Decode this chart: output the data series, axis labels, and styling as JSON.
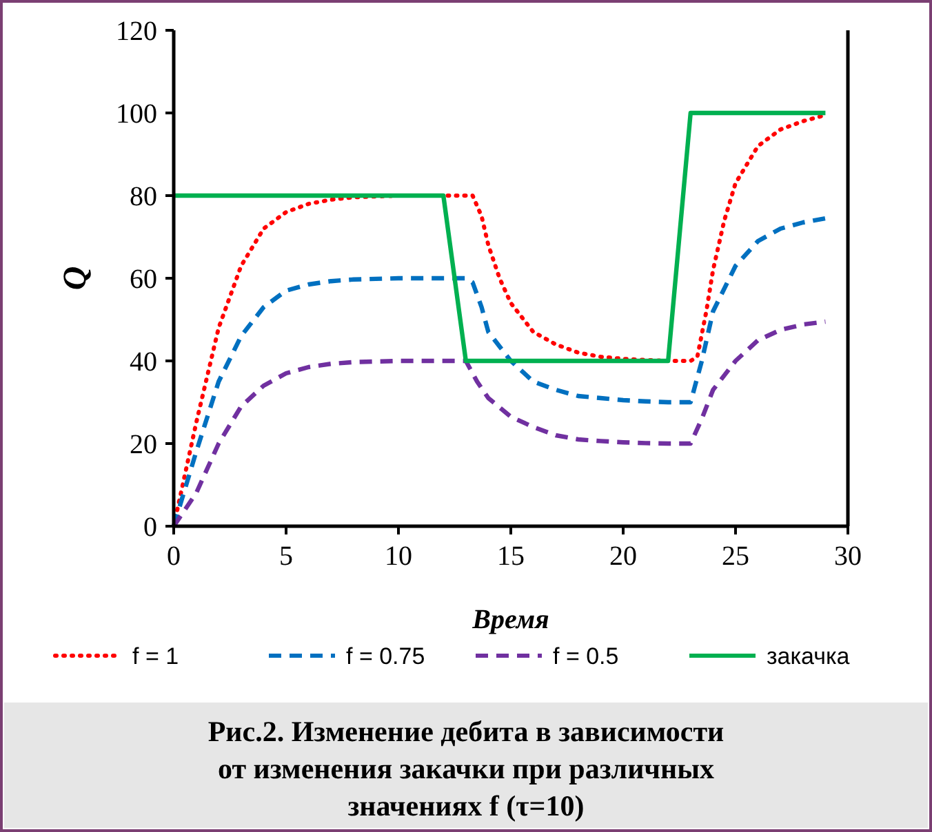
{
  "chart_data": {
    "type": "line",
    "xlabel": "Время",
    "ylabel": "Q",
    "xlim": [
      0,
      30
    ],
    "ylim": [
      0,
      120
    ],
    "xticks": [
      0,
      5,
      10,
      15,
      20,
      25,
      30
    ],
    "yticks": [
      0,
      20,
      40,
      60,
      80,
      100,
      120
    ],
    "grid": false,
    "legend": "bottom",
    "marker": "none",
    "annotations": [
      "Рис.2. Изменение дебита в зависимости от изменения закачки при различных значениях f (τ=10)"
    ],
    "series": [
      {
        "name": "f = 1",
        "color": "#ff0000",
        "line_style": "dotted",
        "x": [
          0,
          1,
          2,
          3,
          4,
          5,
          6,
          7,
          8,
          10,
          12,
          13,
          13.3,
          13.7,
          14,
          14.5,
          15,
          16,
          17,
          18,
          19,
          20,
          21,
          22,
          23,
          23.3,
          23.7,
          24,
          24.5,
          25,
          26,
          27,
          28,
          29
        ],
        "values": [
          0,
          25,
          48,
          63,
          72,
          76,
          78,
          79,
          79.6,
          80,
          80,
          80,
          80,
          75,
          68,
          60,
          54,
          47,
          44,
          42,
          41,
          40.5,
          40.2,
          40,
          40,
          41,
          52,
          62,
          74,
          83,
          92,
          96,
          98,
          99.5
        ]
      },
      {
        "name": "f = 0.75",
        "color": "#0070c0",
        "line_style": "dashed",
        "x": [
          0,
          1,
          2,
          3,
          4,
          5,
          6,
          7,
          8,
          10,
          12,
          13,
          13.3,
          13.7,
          14,
          15,
          16,
          17,
          18,
          19,
          20,
          21,
          22,
          23,
          23.5,
          24,
          25,
          26,
          27,
          28,
          29
        ],
        "values": [
          0,
          18,
          35,
          46,
          53,
          57,
          58.5,
          59.3,
          59.7,
          60,
          60,
          60,
          59,
          53,
          47,
          40,
          35,
          33,
          31.5,
          31,
          30.5,
          30.2,
          30,
          30,
          40,
          52,
          63,
          69,
          72,
          73.5,
          74.5
        ]
      },
      {
        "name": "f = 0.5",
        "color": "#7030a0",
        "line_style": "dashed",
        "x": [
          0,
          1,
          2,
          3,
          4,
          5,
          6,
          7,
          8,
          10,
          12,
          13,
          13.5,
          14,
          15,
          16,
          17,
          18,
          19,
          20,
          21,
          22,
          23,
          23.5,
          24,
          25,
          26,
          27,
          28,
          29
        ],
        "values": [
          0,
          8,
          20,
          29,
          34,
          37,
          38.5,
          39.3,
          39.7,
          40,
          40,
          40,
          35,
          31,
          26.5,
          24,
          22,
          21,
          20.6,
          20.3,
          20.1,
          20,
          20,
          26,
          33,
          40,
          45,
          47.5,
          48.8,
          49.5
        ]
      },
      {
        "name": "закачка",
        "color": "#00b050",
        "line_style": "solid",
        "x": [
          0,
          12,
          13,
          22,
          23,
          29
        ],
        "values": [
          80,
          80,
          40,
          40,
          100,
          100
        ]
      }
    ]
  }
}
